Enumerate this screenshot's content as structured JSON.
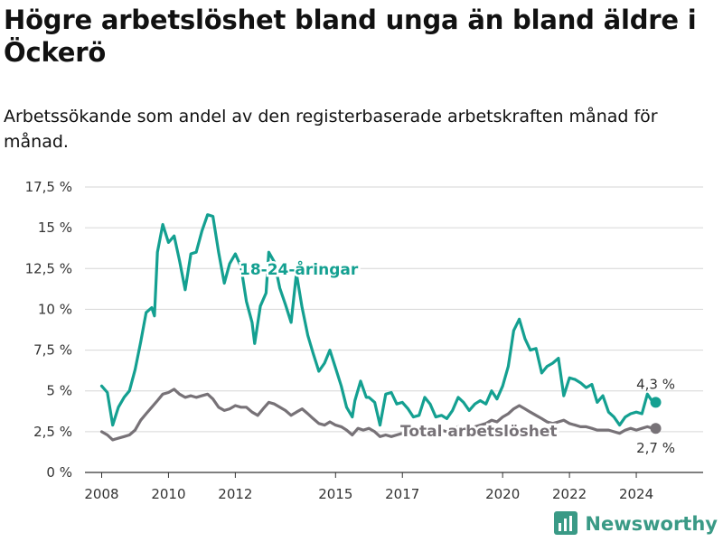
{
  "header": {
    "title": "Högre arbetslöshet bland unga än bland äldre i Öckerö",
    "subtitle": "Arbetssökande som andel av den registerbaserade arbetskraften månad för månad."
  },
  "brand": {
    "name": "Newsworthy",
    "color": "#3a9a86",
    "icon": "bar-chart-logo-icon"
  },
  "chart_data": {
    "type": "line",
    "y_ticks": [
      "0 %",
      "2,5 %",
      "5 %",
      "7,5 %",
      "10 %",
      "12,5 %",
      "15 %",
      "17,5 %"
    ],
    "x_ticks": [
      "2008",
      "2010",
      "2012",
      "2015",
      "2017",
      "2020",
      "2022",
      "2024"
    ],
    "ylim": [
      0,
      17.5
    ],
    "xlim": [
      2007.5,
      2026.0
    ],
    "grid": true,
    "series": [
      {
        "name": "18-24-åringar",
        "color": "#14a091",
        "end_value_label": "4,3 %",
        "points": [
          [
            2008.0,
            5.3
          ],
          [
            2008.17,
            4.9
          ],
          [
            2008.33,
            2.9
          ],
          [
            2008.5,
            4.0
          ],
          [
            2008.67,
            4.6
          ],
          [
            2008.83,
            5.0
          ],
          [
            2009.0,
            6.3
          ],
          [
            2009.17,
            8.0
          ],
          [
            2009.33,
            9.8
          ],
          [
            2009.5,
            10.1
          ],
          [
            2009.58,
            9.6
          ],
          [
            2009.67,
            13.5
          ],
          [
            2009.83,
            15.2
          ],
          [
            2010.0,
            14.1
          ],
          [
            2010.17,
            14.5
          ],
          [
            2010.33,
            13.0
          ],
          [
            2010.5,
            11.2
          ],
          [
            2010.67,
            13.4
          ],
          [
            2010.83,
            13.5
          ],
          [
            2011.0,
            14.8
          ],
          [
            2011.17,
            15.8
          ],
          [
            2011.33,
            15.7
          ],
          [
            2011.5,
            13.5
          ],
          [
            2011.67,
            11.6
          ],
          [
            2011.83,
            12.8
          ],
          [
            2012.0,
            13.4
          ],
          [
            2012.17,
            12.6
          ],
          [
            2012.33,
            10.5
          ],
          [
            2012.5,
            9.2
          ],
          [
            2012.58,
            7.9
          ],
          [
            2012.75,
            10.2
          ],
          [
            2012.92,
            11.0
          ],
          [
            2013.0,
            13.5
          ],
          [
            2013.17,
            12.9
          ],
          [
            2013.33,
            11.3
          ],
          [
            2013.5,
            10.3
          ],
          [
            2013.67,
            9.2
          ],
          [
            2013.83,
            12.2
          ],
          [
            2014.0,
            10.1
          ],
          [
            2014.17,
            8.4
          ],
          [
            2014.33,
            7.3
          ],
          [
            2014.5,
            6.2
          ],
          [
            2014.67,
            6.7
          ],
          [
            2014.83,
            7.5
          ],
          [
            2015.0,
            6.4
          ],
          [
            2015.17,
            5.3
          ],
          [
            2015.33,
            4.0
          ],
          [
            2015.5,
            3.4
          ],
          [
            2015.58,
            4.4
          ],
          [
            2015.75,
            5.6
          ],
          [
            2015.92,
            4.6
          ],
          [
            2016.0,
            4.6
          ],
          [
            2016.17,
            4.3
          ],
          [
            2016.33,
            2.9
          ],
          [
            2016.5,
            4.8
          ],
          [
            2016.67,
            4.9
          ],
          [
            2016.83,
            4.2
          ],
          [
            2017.0,
            4.3
          ],
          [
            2017.17,
            3.9
          ],
          [
            2017.33,
            3.4
          ],
          [
            2017.5,
            3.5
          ],
          [
            2017.67,
            4.6
          ],
          [
            2017.83,
            4.2
          ],
          [
            2018.0,
            3.4
          ],
          [
            2018.17,
            3.5
          ],
          [
            2018.33,
            3.3
          ],
          [
            2018.5,
            3.8
          ],
          [
            2018.67,
            4.6
          ],
          [
            2018.83,
            4.3
          ],
          [
            2019.0,
            3.8
          ],
          [
            2019.17,
            4.2
          ],
          [
            2019.33,
            4.4
          ],
          [
            2019.5,
            4.2
          ],
          [
            2019.67,
            5.0
          ],
          [
            2019.83,
            4.5
          ],
          [
            2020.0,
            5.3
          ],
          [
            2020.17,
            6.5
          ],
          [
            2020.33,
            8.7
          ],
          [
            2020.5,
            9.4
          ],
          [
            2020.67,
            8.2
          ],
          [
            2020.83,
            7.5
          ],
          [
            2021.0,
            7.6
          ],
          [
            2021.17,
            6.1
          ],
          [
            2021.33,
            6.5
          ],
          [
            2021.5,
            6.7
          ],
          [
            2021.67,
            7.0
          ],
          [
            2021.83,
            4.7
          ],
          [
            2022.0,
            5.8
          ],
          [
            2022.17,
            5.7
          ],
          [
            2022.33,
            5.5
          ],
          [
            2022.5,
            5.2
          ],
          [
            2022.67,
            5.4
          ],
          [
            2022.83,
            4.3
          ],
          [
            2023.0,
            4.7
          ],
          [
            2023.17,
            3.7
          ],
          [
            2023.33,
            3.4
          ],
          [
            2023.5,
            2.9
          ],
          [
            2023.67,
            3.4
          ],
          [
            2023.83,
            3.6
          ],
          [
            2024.0,
            3.7
          ],
          [
            2024.17,
            3.6
          ],
          [
            2024.33,
            4.8
          ],
          [
            2024.5,
            4.3
          ]
        ]
      },
      {
        "name": "Total arbetslöshet",
        "color": "#777277",
        "end_value_label": "2,7 %",
        "points": [
          [
            2008.0,
            2.5
          ],
          [
            2008.17,
            2.3
          ],
          [
            2008.33,
            2.0
          ],
          [
            2008.5,
            2.1
          ],
          [
            2008.67,
            2.2
          ],
          [
            2008.83,
            2.3
          ],
          [
            2009.0,
            2.6
          ],
          [
            2009.17,
            3.2
          ],
          [
            2009.33,
            3.6
          ],
          [
            2009.5,
            4.0
          ],
          [
            2009.67,
            4.4
          ],
          [
            2009.83,
            4.8
          ],
          [
            2010.0,
            4.9
          ],
          [
            2010.17,
            5.1
          ],
          [
            2010.33,
            4.8
          ],
          [
            2010.5,
            4.6
          ],
          [
            2010.67,
            4.7
          ],
          [
            2010.83,
            4.6
          ],
          [
            2011.0,
            4.7
          ],
          [
            2011.17,
            4.8
          ],
          [
            2011.33,
            4.5
          ],
          [
            2011.5,
            4.0
          ],
          [
            2011.67,
            3.8
          ],
          [
            2011.83,
            3.9
          ],
          [
            2012.0,
            4.1
          ],
          [
            2012.17,
            4.0
          ],
          [
            2012.33,
            4.0
          ],
          [
            2012.5,
            3.7
          ],
          [
            2012.67,
            3.5
          ],
          [
            2012.83,
            3.9
          ],
          [
            2013.0,
            4.3
          ],
          [
            2013.17,
            4.2
          ],
          [
            2013.33,
            4.0
          ],
          [
            2013.5,
            3.8
          ],
          [
            2013.67,
            3.5
          ],
          [
            2013.83,
            3.7
          ],
          [
            2014.0,
            3.9
          ],
          [
            2014.17,
            3.6
          ],
          [
            2014.33,
            3.3
          ],
          [
            2014.5,
            3.0
          ],
          [
            2014.67,
            2.9
          ],
          [
            2014.83,
            3.1
          ],
          [
            2015.0,
            2.9
          ],
          [
            2015.17,
            2.8
          ],
          [
            2015.33,
            2.6
          ],
          [
            2015.5,
            2.3
          ],
          [
            2015.67,
            2.7
          ],
          [
            2015.83,
            2.6
          ],
          [
            2016.0,
            2.7
          ],
          [
            2016.17,
            2.5
          ],
          [
            2016.33,
            2.2
          ],
          [
            2016.5,
            2.3
          ],
          [
            2016.67,
            2.2
          ],
          [
            2016.83,
            2.3
          ],
          [
            2017.0,
            2.4
          ],
          [
            2017.17,
            2.5
          ],
          [
            2017.33,
            2.4
          ],
          [
            2017.5,
            2.5
          ],
          [
            2017.67,
            2.4
          ],
          [
            2017.83,
            2.5
          ],
          [
            2018.0,
            2.6
          ],
          [
            2018.17,
            2.6
          ],
          [
            2018.33,
            2.5
          ],
          [
            2018.5,
            2.6
          ],
          [
            2018.67,
            2.8
          ],
          [
            2018.83,
            2.7
          ],
          [
            2019.0,
            2.6
          ],
          [
            2019.17,
            2.8
          ],
          [
            2019.33,
            2.9
          ],
          [
            2019.5,
            3.0
          ],
          [
            2019.67,
            3.2
          ],
          [
            2019.83,
            3.1
          ],
          [
            2020.0,
            3.4
          ],
          [
            2020.17,
            3.6
          ],
          [
            2020.33,
            3.9
          ],
          [
            2020.5,
            4.1
          ],
          [
            2020.67,
            3.9
          ],
          [
            2020.83,
            3.7
          ],
          [
            2021.0,
            3.5
          ],
          [
            2021.17,
            3.3
          ],
          [
            2021.33,
            3.1
          ],
          [
            2021.5,
            3.0
          ],
          [
            2021.67,
            3.1
          ],
          [
            2021.83,
            3.2
          ],
          [
            2022.0,
            3.0
          ],
          [
            2022.17,
            2.9
          ],
          [
            2022.33,
            2.8
          ],
          [
            2022.5,
            2.8
          ],
          [
            2022.67,
            2.7
          ],
          [
            2022.83,
            2.6
          ],
          [
            2023.0,
            2.6
          ],
          [
            2023.17,
            2.6
          ],
          [
            2023.33,
            2.5
          ],
          [
            2023.5,
            2.4
          ],
          [
            2023.67,
            2.6
          ],
          [
            2023.83,
            2.7
          ],
          [
            2024.0,
            2.6
          ],
          [
            2024.17,
            2.7
          ],
          [
            2024.33,
            2.8
          ],
          [
            2024.5,
            2.7
          ]
        ]
      }
    ]
  }
}
